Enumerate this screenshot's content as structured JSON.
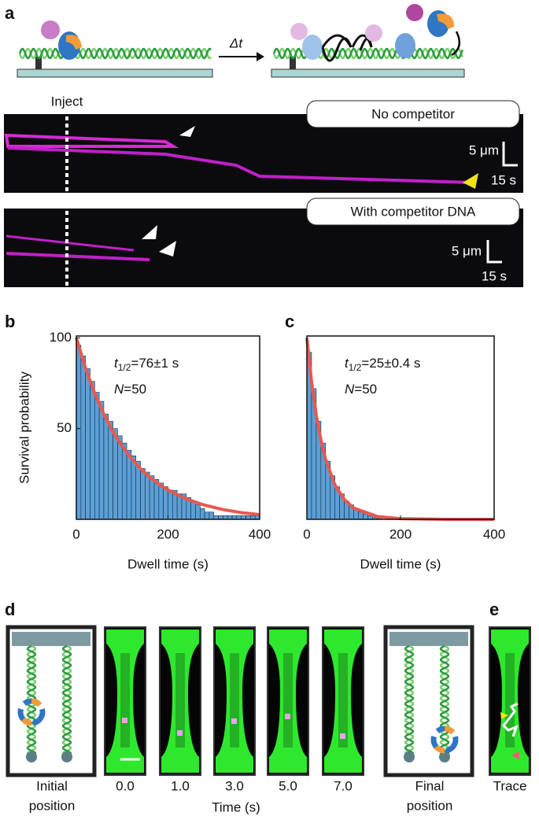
{
  "panel_labels": [
    "a",
    "b",
    "c",
    "d",
    "e"
  ],
  "panel_a": {
    "delta_t": "Δt",
    "inject": "Inject",
    "kymographs": [
      {
        "condition": "No competitor",
        "length_scale": "5 μm",
        "time_scale": "15 s"
      },
      {
        "condition": "With competitor DNA",
        "length_scale": "5 μm",
        "time_scale": "15 s"
      }
    ]
  },
  "chart_data": [
    {
      "type": "histogram",
      "bins": [
        0,
        10,
        20,
        30,
        40,
        50,
        60,
        70,
        80,
        90,
        100,
        110,
        120,
        130,
        140,
        150,
        160,
        170,
        180,
        190,
        200,
        210,
        220,
        230,
        240,
        250,
        260,
        270,
        280,
        290,
        300,
        310,
        320,
        330,
        340,
        350,
        360,
        370,
        380,
        390,
        400
      ],
      "values": [
        96,
        90,
        83,
        76,
        70,
        65,
        58,
        54,
        50,
        46,
        42,
        38,
        35,
        32,
        28,
        26,
        24,
        22,
        20,
        18,
        16,
        16,
        14,
        14,
        12,
        10,
        8,
        6,
        4,
        4,
        2,
        2,
        2,
        2,
        2,
        2,
        2,
        2,
        2,
        2
      ],
      "color": "#5b9fd6",
      "fit": {
        "x": [
          0,
          20,
          40,
          60,
          80,
          100,
          120,
          140,
          160,
          180,
          200,
          240,
          280,
          320,
          360,
          400
        ],
        "values": [
          100,
          83.3,
          69.4,
          57.9,
          48.2,
          40.2,
          33.5,
          27.9,
          23.3,
          19.4,
          16.2,
          11.2,
          7.8,
          5.4,
          3.7,
          2.6
        ],
        "color": "#e8584f"
      },
      "xlim": [
        0,
        400
      ],
      "ylim": [
        0,
        101
      ],
      "xticks": [
        0,
        200,
        400
      ],
      "yticks": [
        50,
        100
      ],
      "x_label": "Dwell time (s)",
      "y_label": "Survival probability",
      "annotations": [
        {
          "symbol": "t",
          "subscript": "1/2",
          "text": "=76±1 s"
        },
        {
          "symbol": "N",
          "text": "=50"
        }
      ]
    },
    {
      "type": "histogram",
      "bins": [
        0,
        10,
        20,
        30,
        40,
        50,
        60,
        70,
        80,
        90,
        100,
        110,
        120,
        130,
        140,
        150,
        160
      ],
      "values": [
        92,
        72,
        54,
        42,
        32,
        24,
        18,
        14,
        10,
        8,
        6,
        4,
        3,
        2,
        1,
        1
      ],
      "color": "#5b9fd6",
      "fit": {
        "x": [
          0,
          10,
          20,
          30,
          40,
          60,
          80,
          100,
          150,
          200,
          300,
          400
        ],
        "values": [
          100,
          75.8,
          57.4,
          43.5,
          33,
          18.9,
          10.9,
          6.25,
          1.6,
          0.4,
          0,
          0
        ],
        "color": "#e8584f"
      },
      "xlim": [
        0,
        400
      ],
      "ylim": [
        0,
        101
      ],
      "xticks": [
        0,
        200,
        400
      ],
      "x_label": "Dwell time (s)",
      "annotations": [
        {
          "symbol": "t",
          "subscript": "1/2",
          "text": "=25±0.4 s"
        },
        {
          "symbol": "N",
          "text": "=50"
        }
      ]
    }
  ],
  "panel_d": {
    "initial": [
      "Initial",
      "position"
    ],
    "times": [
      "0.0",
      "1.0",
      "3.0",
      "5.0",
      "7.0"
    ],
    "time_label": "Time (s)",
    "final": [
      "Final",
      "position"
    ]
  },
  "panel_e": {
    "label": "Trace"
  }
}
